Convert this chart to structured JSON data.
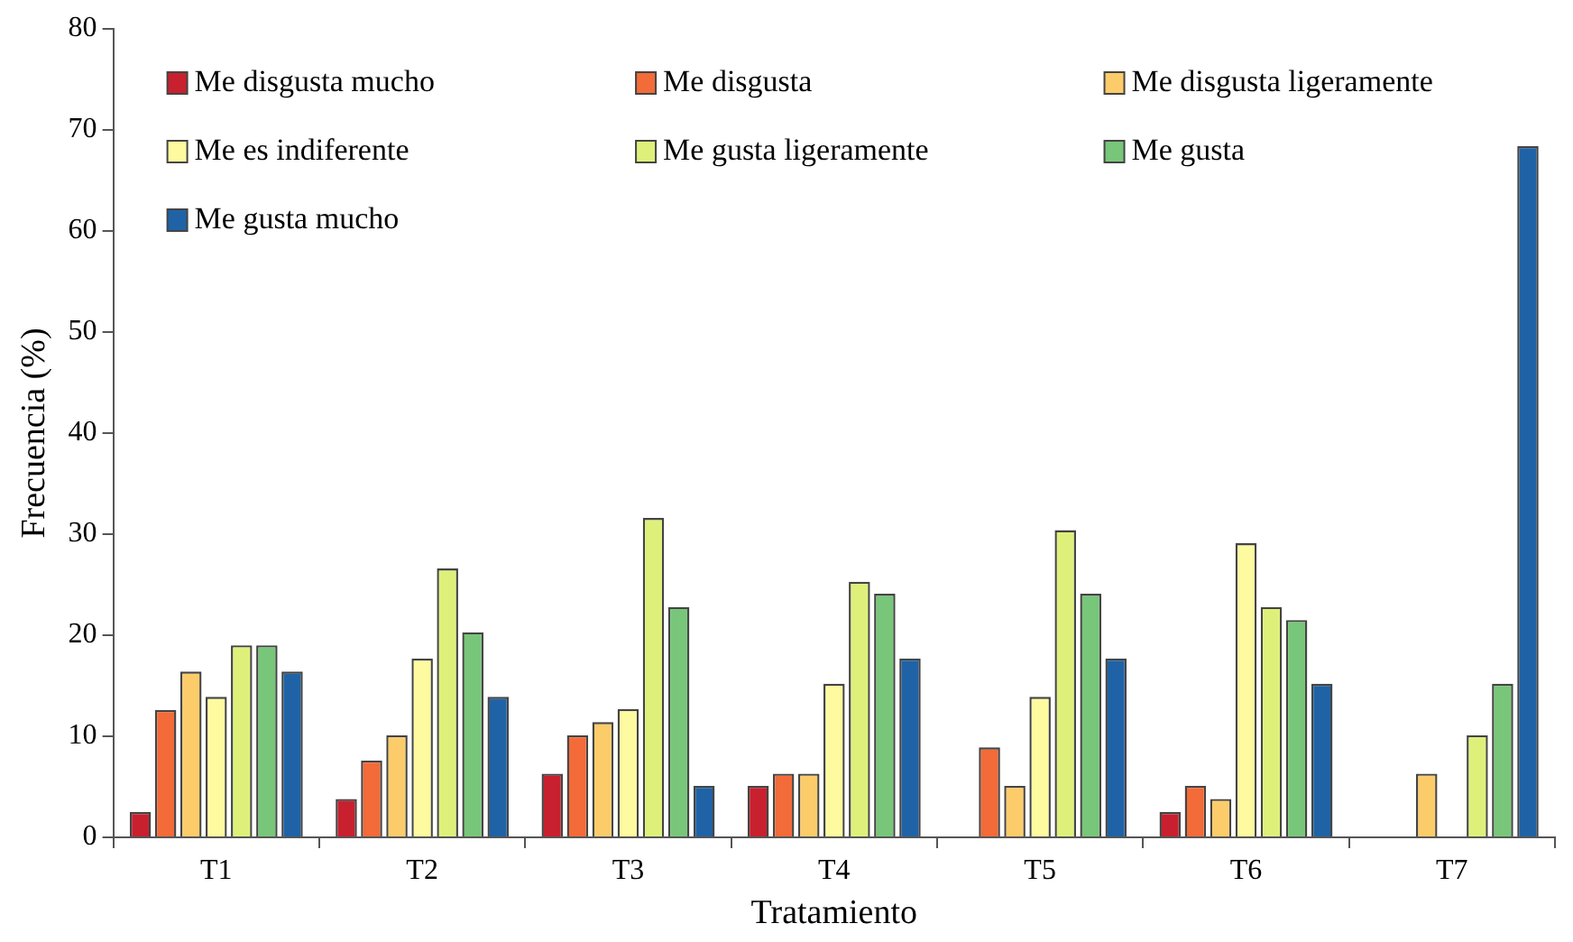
{
  "chart_data": {
    "type": "bar",
    "xlabel": "Tratamiento",
    "ylabel": "Frecuencia (%)",
    "categories": [
      "T1",
      "T2",
      "T3",
      "T4",
      "T5",
      "T6",
      "T7"
    ],
    "series": [
      {
        "name": "Me disgusta mucho",
        "color": "#c8202e",
        "values": [
          2.5,
          3.8,
          6.3,
          5.1,
          0,
          2.5,
          0
        ]
      },
      {
        "name": "Me disgusta",
        "color": "#f26b38",
        "values": [
          12.6,
          7.6,
          10.1,
          6.3,
          8.9,
          5.1,
          0
        ]
      },
      {
        "name": "Me disgusta ligeramente",
        "color": "#fdcc6a",
        "values": [
          16.4,
          10.1,
          11.4,
          6.3,
          5.1,
          3.8,
          6.3
        ]
      },
      {
        "name": "Me es indiferente",
        "color": "#fefaa0",
        "values": [
          13.9,
          17.7,
          12.7,
          15.2,
          13.9,
          29.1,
          0
        ]
      },
      {
        "name": "Me gusta ligeramente",
        "color": "#dff07a",
        "values": [
          19,
          26.6,
          31.6,
          25.3,
          30.4,
          22.8,
          10.1
        ]
      },
      {
        "name": "Me gusta",
        "color": "#78c679",
        "values": [
          19,
          20.3,
          22.8,
          24.1,
          24.1,
          21.5,
          15.2
        ]
      },
      {
        "name": "Me gusta mucho",
        "color": "#1f63a6",
        "values": [
          16.4,
          13.9,
          5.1,
          17.7,
          17.7,
          15.2,
          68.4
        ]
      }
    ],
    "ylim": [
      0,
      80
    ],
    "yticks": [
      0,
      10,
      20,
      30,
      40,
      50,
      60,
      70,
      80
    ],
    "grid": false,
    "legend": "top"
  }
}
